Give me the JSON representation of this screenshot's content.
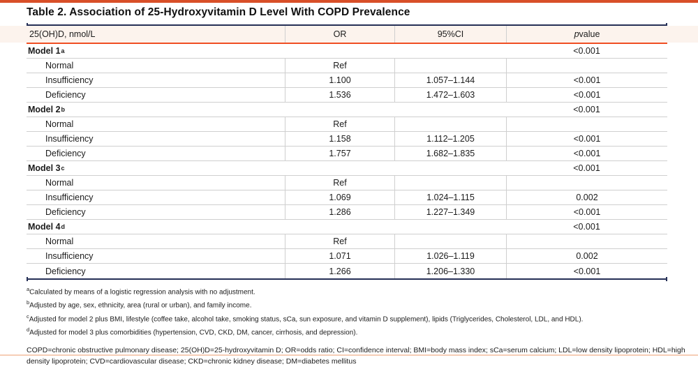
{
  "page": {
    "top_bar_color": "#d84f28",
    "navy_rule_color": "#252f56",
    "orange_rule_color": "#f04e23",
    "header_band_color": "#fcf3ed",
    "gridline_color": "#cfcfcf",
    "bottom_line_color": "#f6cdb6"
  },
  "title": "Table 2. Association of 25-Hydroxyvitamin D Level With COPD Prevalence",
  "table": {
    "header": {
      "col1": "25(OH)D, nmol/L",
      "col2": "OR",
      "col3": "95%CI",
      "p_italic": "p",
      "p_rest": " value"
    },
    "rows": [
      {
        "type": "model",
        "label": "Model 1",
        "sup": "a",
        "p": "<0.001"
      },
      {
        "type": "data",
        "label": "Normal",
        "or": "Ref",
        "ci": "",
        "p": ""
      },
      {
        "type": "data",
        "label": "Insufficiency",
        "or": "1.100",
        "ci": "1.057–1.144",
        "p": "<0.001"
      },
      {
        "type": "data",
        "label": "Deficiency",
        "or": "1.536",
        "ci": "1.472–1.603",
        "p": "<0.001"
      },
      {
        "type": "model",
        "label": "Model 2",
        "sup": "b",
        "p": "<0.001"
      },
      {
        "type": "data",
        "label": "Normal",
        "or": "Ref",
        "ci": "",
        "p": ""
      },
      {
        "type": "data",
        "label": "Insufficiency",
        "or": "1.158",
        "ci": "1.112–1.205",
        "p": "<0.001"
      },
      {
        "type": "data",
        "label": "Deficiency",
        "or": "1.757",
        "ci": "1.682–1.835",
        "p": "<0.001"
      },
      {
        "type": "model",
        "label": "Model 3",
        "sup": "c",
        "p": "<0.001"
      },
      {
        "type": "data",
        "label": "Normal",
        "or": "Ref",
        "ci": "",
        "p": ""
      },
      {
        "type": "data",
        "label": "Insufficiency",
        "or": "1.069",
        "ci": "1.024–1.115",
        "p": "0.002"
      },
      {
        "type": "data",
        "label": "Deficiency",
        "or": "1.286",
        "ci": "1.227–1.349",
        "p": "<0.001"
      },
      {
        "type": "model",
        "label": "Model 4",
        "sup": "d",
        "p": "<0.001"
      },
      {
        "type": "data",
        "label": "Normal",
        "or": "Ref",
        "ci": "",
        "p": ""
      },
      {
        "type": "data",
        "label": "Insufficiency",
        "or": "1.071",
        "ci": "1.026–1.119",
        "p": "0.002"
      },
      {
        "type": "data",
        "label": "Deficiency",
        "or": "1.266",
        "ci": "1.206–1.330",
        "p": "<0.001"
      }
    ]
  },
  "footnotes": [
    {
      "sup": "a",
      "text": "Calculated by means of a logistic regression analysis with no adjustment."
    },
    {
      "sup": "b",
      "text": "Adjusted by age, sex, ethnicity, area (rural or urban), and family income."
    },
    {
      "sup": "c",
      "text": "Adjusted for model 2 plus BMI, lifestyle (coffee take, alcohol take, smoking status, sCa, sun exposure, and vitamin D supplement), lipids (Triglycerides, Cholesterol, LDL, and HDL)."
    },
    {
      "sup": "d",
      "text": "Adjusted for model 3 plus comorbidities (hypertension, CVD, CKD, DM, cancer, cirrhosis, and depression)."
    }
  ],
  "abbreviations": "COPD=chronic obstructive pulmonary disease; 25(OH)D=25-hydroxyvitamin D; OR=odds ratio; CI=confidence interval; BMI=body mass index; sCa=serum calcium; LDL=low density lipoprotein; HDL=high density lipoprotein; CVD=cardiovascular disease; CKD=chronic kidney disease; DM=diabetes mellitus"
}
